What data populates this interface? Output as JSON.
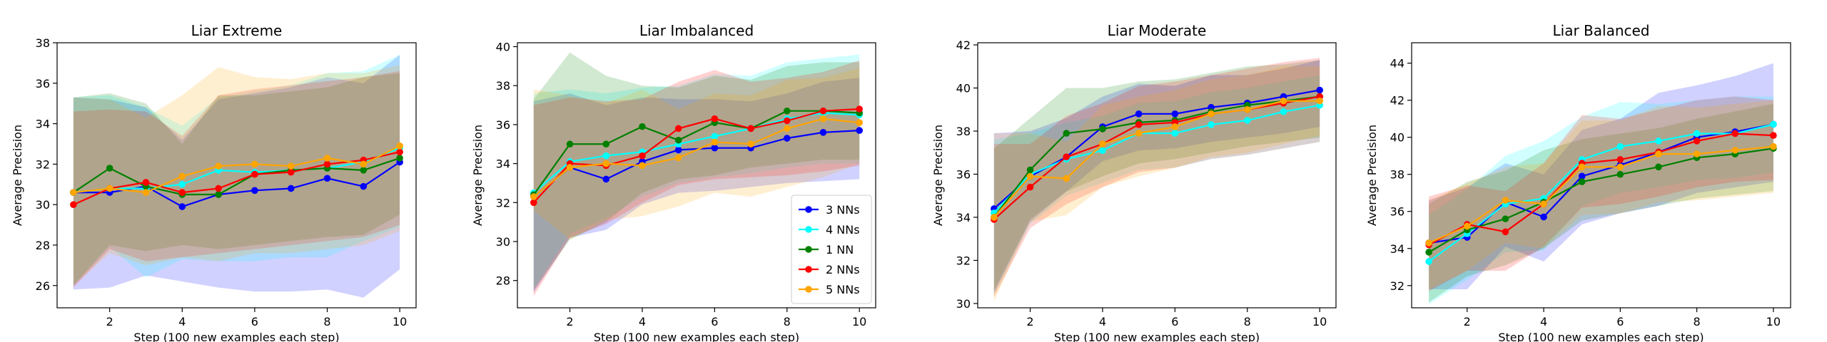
{
  "chart_data": [
    {
      "type": "line",
      "title": "Liar Extreme",
      "xlabel": "Step (100 new examples each step)",
      "ylabel": "Average Precision",
      "xlim": [
        0.55,
        10.45
      ],
      "ylim": [
        24.9,
        38
      ],
      "xticks": [
        2,
        4,
        6,
        8,
        10
      ],
      "yticks": [
        26,
        28,
        30,
        32,
        34,
        36,
        38
      ],
      "x": [
        1,
        2,
        3,
        4,
        5,
        6,
        7,
        8,
        9,
        10
      ],
      "legend": false,
      "series": [
        {
          "name": "3 NNs",
          "color": "#0000ff",
          "values": [
            30.6,
            30.6,
            30.9,
            29.9,
            30.5,
            30.7,
            30.8,
            31.3,
            30.9,
            32.1
          ],
          "lower": [
            25.8,
            25.9,
            26.5,
            26.2,
            25.9,
            25.7,
            25.7,
            25.8,
            25.4,
            26.8
          ],
          "upper": [
            35.3,
            35.2,
            34.8,
            33.2,
            35.2,
            35.5,
            35.8,
            36.3,
            36.0,
            37.4
          ]
        },
        {
          "name": "4 NNs",
          "color": "#00ffff",
          "values": [
            30.6,
            30.8,
            30.8,
            31.0,
            31.7,
            31.6,
            31.7,
            31.8,
            32.1,
            32.8
          ],
          "lower": [
            26.0,
            27.9,
            26.4,
            27.3,
            27.2,
            27.2,
            27.4,
            27.4,
            28.2,
            28.9
          ],
          "upper": [
            35.3,
            35.4,
            34.8,
            33.9,
            35.3,
            35.6,
            35.9,
            36.5,
            36.6,
            37.4
          ]
        },
        {
          "name": "1 NN",
          "color": "#008000",
          "values": [
            30.6,
            31.8,
            30.9,
            30.5,
            30.5,
            31.5,
            31.7,
            31.8,
            31.7,
            32.3
          ],
          "lower": [
            26.0,
            28.0,
            27.7,
            28.0,
            27.8,
            28.0,
            28.2,
            28.4,
            28.5,
            29.5
          ],
          "upper": [
            35.3,
            35.5,
            35.0,
            33.0,
            35.4,
            35.4,
            35.6,
            35.8,
            36.3,
            36.5
          ]
        },
        {
          "name": "2 NNs",
          "color": "#ff0000",
          "values": [
            30.0,
            30.8,
            31.1,
            30.6,
            30.8,
            31.5,
            31.6,
            32.0,
            32.2,
            32.6
          ],
          "lower": [
            25.9,
            27.8,
            27.2,
            27.4,
            27.6,
            27.8,
            28.0,
            28.2,
            28.4,
            29.0
          ],
          "upper": [
            34.6,
            34.7,
            34.6,
            33.4,
            35.4,
            35.7,
            35.9,
            36.1,
            36.3,
            36.6
          ]
        },
        {
          "name": "5 NNs",
          "color": "#ffa500",
          "values": [
            30.6,
            30.8,
            30.6,
            31.4,
            31.9,
            32.0,
            31.9,
            32.3,
            32.0,
            32.9
          ],
          "lower": [
            26.0,
            27.6,
            27.0,
            27.4,
            27.2,
            27.6,
            27.6,
            27.8,
            28.0,
            28.7
          ],
          "upper": [
            35.3,
            35.2,
            34.3,
            35.4,
            36.8,
            36.3,
            36.2,
            36.5,
            36.5,
            36.9
          ]
        }
      ]
    },
    {
      "type": "line",
      "title": "Liar Imbalanced",
      "xlabel": "Step (100 new examples each step)",
      "ylabel": "Average Precision",
      "xlim": [
        0.55,
        10.45
      ],
      "ylim": [
        26.6,
        40.2
      ],
      "xticks": [
        2,
        4,
        6,
        8,
        10
      ],
      "yticks": [
        28,
        30,
        32,
        34,
        36,
        38,
        40
      ],
      "x": [
        1,
        2,
        3,
        4,
        5,
        6,
        7,
        8,
        9,
        10
      ],
      "legend": true,
      "legend_position": "lower-right",
      "series": [
        {
          "name": "3 NNs",
          "color": "#0000ff",
          "values": [
            32.3,
            33.8,
            33.2,
            34.1,
            34.7,
            34.8,
            34.8,
            35.3,
            35.6,
            35.7
          ],
          "lower": [
            27.4,
            30.2,
            30.6,
            31.9,
            32.5,
            32.6,
            32.8,
            33.0,
            33.1,
            33.2
          ],
          "upper": [
            37.2,
            37.6,
            37.0,
            37.4,
            37.3,
            37.3,
            37.2,
            37.6,
            38.2,
            38.4
          ]
        },
        {
          "name": "4 NNs",
          "color": "#00ffff",
          "values": [
            32.5,
            34.1,
            34.4,
            34.6,
            35.0,
            35.4,
            35.8,
            36.3,
            36.6,
            36.5
          ],
          "lower": [
            27.6,
            30.4,
            31.2,
            32.3,
            33.0,
            33.3,
            33.5,
            33.8,
            34.0,
            34.0
          ],
          "upper": [
            37.6,
            37.8,
            37.6,
            37.9,
            38.0,
            38.6,
            38.5,
            39.2,
            39.4,
            39.6
          ]
        },
        {
          "name": "1 NN",
          "color": "#008000",
          "values": [
            32.4,
            35.0,
            35.0,
            35.9,
            35.2,
            36.1,
            35.8,
            36.7,
            36.7,
            36.6
          ],
          "lower": [
            27.5,
            30.1,
            31.0,
            32.5,
            33.2,
            33.4,
            33.8,
            34.0,
            34.2,
            34.2
          ],
          "upper": [
            37.3,
            39.7,
            38.5,
            38.0,
            37.9,
            38.5,
            38.3,
            39.0,
            39.2,
            39.2
          ]
        },
        {
          "name": "2 NNs",
          "color": "#ff0000",
          "values": [
            32.0,
            34.0,
            33.9,
            34.4,
            35.8,
            36.3,
            35.8,
            36.2,
            36.7,
            36.8
          ],
          "lower": [
            27.2,
            30.2,
            30.9,
            32.0,
            32.9,
            33.2,
            33.3,
            33.4,
            33.6,
            33.9
          ],
          "upper": [
            37.0,
            37.4,
            37.2,
            37.3,
            38.2,
            38.8,
            38.2,
            38.4,
            38.7,
            39.3
          ]
        },
        {
          "name": "5 NNs",
          "color": "#ffa500",
          "values": [
            32.3,
            33.8,
            34.0,
            33.9,
            34.3,
            35.1,
            35.0,
            35.8,
            36.3,
            36.1
          ],
          "lower": [
            31.6,
            30.1,
            31.1,
            31.3,
            31.8,
            32.5,
            32.3,
            32.8,
            33.3,
            34.0
          ],
          "upper": [
            37.8,
            37.5,
            37.1,
            37.8,
            36.8,
            37.6,
            37.5,
            38.3,
            38.4,
            38.9
          ]
        }
      ]
    },
    {
      "type": "line",
      "title": "Liar Moderate",
      "xlabel": "Step (100 new examples each step)",
      "ylabel": "Average Precision",
      "xlim": [
        0.55,
        10.45
      ],
      "ylim": [
        29.8,
        42.1
      ],
      "xticks": [
        2,
        4,
        6,
        8,
        10
      ],
      "yticks": [
        30,
        32,
        34,
        36,
        38,
        40,
        42
      ],
      "x": [
        1,
        2,
        3,
        4,
        5,
        6,
        7,
        8,
        9,
        10
      ],
      "legend": false,
      "series": [
        {
          "name": "3 NNs",
          "color": "#0000ff",
          "values": [
            34.4,
            35.9,
            36.8,
            38.2,
            38.8,
            38.8,
            39.1,
            39.3,
            39.6,
            39.9
          ],
          "lower": [
            30.5,
            33.8,
            35.2,
            36.6,
            37.1,
            37.2,
            37.5,
            37.7,
            37.9,
            38.2
          ],
          "upper": [
            37.9,
            38.0,
            38.6,
            39.6,
            40.2,
            40.1,
            40.6,
            40.6,
            40.9,
            41.3
          ]
        },
        {
          "name": "4 NNs",
          "color": "#00ffff",
          "values": [
            34.2,
            36.0,
            36.7,
            37.1,
            37.9,
            37.9,
            38.3,
            38.5,
            38.9,
            39.2
          ],
          "lower": [
            30.4,
            33.7,
            35.0,
            35.6,
            36.2,
            36.3,
            36.7,
            36.9,
            37.2,
            37.5
          ],
          "upper": [
            37.6,
            37.9,
            38.4,
            38.7,
            39.3,
            39.4,
            39.8,
            40.0,
            40.3,
            40.6
          ]
        },
        {
          "name": "1 NN",
          "color": "#008000",
          "values": [
            34.0,
            36.2,
            37.9,
            38.1,
            38.4,
            38.5,
            38.9,
            39.2,
            39.4,
            39.6
          ],
          "lower": [
            30.6,
            33.9,
            35.2,
            35.9,
            36.5,
            36.7,
            37.0,
            37.3,
            37.5,
            37.7
          ],
          "upper": [
            37.2,
            38.6,
            40.0,
            40.0,
            40.3,
            40.4,
            40.7,
            41.0,
            41.1,
            41.3
          ]
        },
        {
          "name": "2 NNs",
          "color": "#ff0000",
          "values": [
            33.9,
            35.4,
            36.8,
            37.4,
            38.3,
            38.4,
            38.8,
            39.0,
            39.3,
            39.6
          ],
          "lower": [
            30.3,
            33.5,
            34.6,
            35.4,
            36.1,
            36.3,
            36.7,
            36.9,
            37.2,
            37.5
          ],
          "upper": [
            37.4,
            37.4,
            38.7,
            39.3,
            40.1,
            40.3,
            40.6,
            40.9,
            41.2,
            41.4
          ]
        },
        {
          "name": "5 NNs",
          "color": "#ffa500",
          "values": [
            34.0,
            35.9,
            35.8,
            37.4,
            37.9,
            38.2,
            38.8,
            39.0,
            39.4,
            39.4
          ],
          "lower": [
            30.1,
            33.8,
            34.1,
            35.4,
            35.9,
            36.3,
            36.8,
            37.0,
            37.4,
            37.8
          ],
          "upper": [
            37.9,
            37.9,
            37.5,
            39.2,
            39.6,
            39.9,
            40.4,
            40.6,
            41.0,
            41.0
          ]
        }
      ]
    },
    {
      "type": "line",
      "title": "Liar Balanced",
      "xlabel": "Step (100 new examples each step)",
      "ylabel": "Average Precision",
      "xlim": [
        0.55,
        10.45
      ],
      "ylim": [
        30.8,
        45.1
      ],
      "xticks": [
        2,
        4,
        6,
        8,
        10
      ],
      "yticks": [
        32,
        34,
        36,
        38,
        40,
        42,
        44
      ],
      "x": [
        1,
        2,
        3,
        4,
        5,
        6,
        7,
        8,
        9,
        10
      ],
      "legend": false,
      "series": [
        {
          "name": "3 NNs",
          "color": "#0000ff",
          "values": [
            34.3,
            34.6,
            36.5,
            35.7,
            37.9,
            38.5,
            39.2,
            40.0,
            40.3,
            40.7
          ],
          "lower": [
            31.8,
            31.8,
            34.1,
            33.3,
            35.3,
            35.9,
            36.3,
            37.0,
            37.3,
            37.6
          ],
          "upper": [
            36.6,
            37.3,
            38.6,
            38.0,
            40.4,
            41.0,
            42.4,
            42.8,
            43.3,
            44.0
          ]
        },
        {
          "name": "4 NNs",
          "color": "#00ffff",
          "values": [
            33.3,
            34.8,
            36.4,
            36.7,
            38.8,
            39.5,
            39.8,
            40.2,
            40.2,
            40.7
          ],
          "lower": [
            31.0,
            32.3,
            33.8,
            33.9,
            36.3,
            37.0,
            37.3,
            37.7,
            37.8,
            38.1
          ],
          "upper": [
            35.8,
            37.2,
            39.0,
            39.8,
            41.1,
            41.9,
            41.8,
            42.0,
            42.2,
            42.2
          ]
        },
        {
          "name": "1 NN",
          "color": "#008000",
          "values": [
            33.8,
            35.0,
            35.6,
            36.5,
            37.6,
            38.0,
            38.4,
            38.9,
            39.1,
            39.4
          ],
          "lower": [
            31.1,
            32.5,
            33.1,
            34.0,
            35.5,
            35.9,
            36.3,
            36.7,
            36.9,
            37.1
          ],
          "upper": [
            36.4,
            37.6,
            38.2,
            39.3,
            39.9,
            40.2,
            40.5,
            41.0,
            41.4,
            41.8
          ]
        },
        {
          "name": "2 NNs",
          "color": "#ff0000",
          "values": [
            34.2,
            35.3,
            34.9,
            36.4,
            38.6,
            38.8,
            39.2,
            39.8,
            40.2,
            40.1
          ],
          "lower": [
            31.7,
            32.8,
            32.8,
            34.1,
            36.2,
            36.4,
            36.8,
            37.3,
            37.6,
            37.7
          ],
          "upper": [
            36.8,
            37.4,
            37.1,
            38.6,
            41.2,
            41.0,
            41.5,
            42.0,
            42.2,
            42.0
          ]
        },
        {
          "name": "5 NNs",
          "color": "#ffa500",
          "values": [
            34.3,
            35.2,
            36.6,
            36.4,
            38.4,
            38.4,
            39.1,
            39.1,
            39.3,
            39.5
          ],
          "lower": [
            31.8,
            32.8,
            34.3,
            34.0,
            35.8,
            35.9,
            36.5,
            36.6,
            36.8,
            37.0
          ],
          "upper": [
            36.6,
            37.5,
            38.4,
            38.6,
            40.9,
            40.9,
            41.7,
            41.6,
            41.8,
            42.0
          ]
        }
      ]
    }
  ]
}
